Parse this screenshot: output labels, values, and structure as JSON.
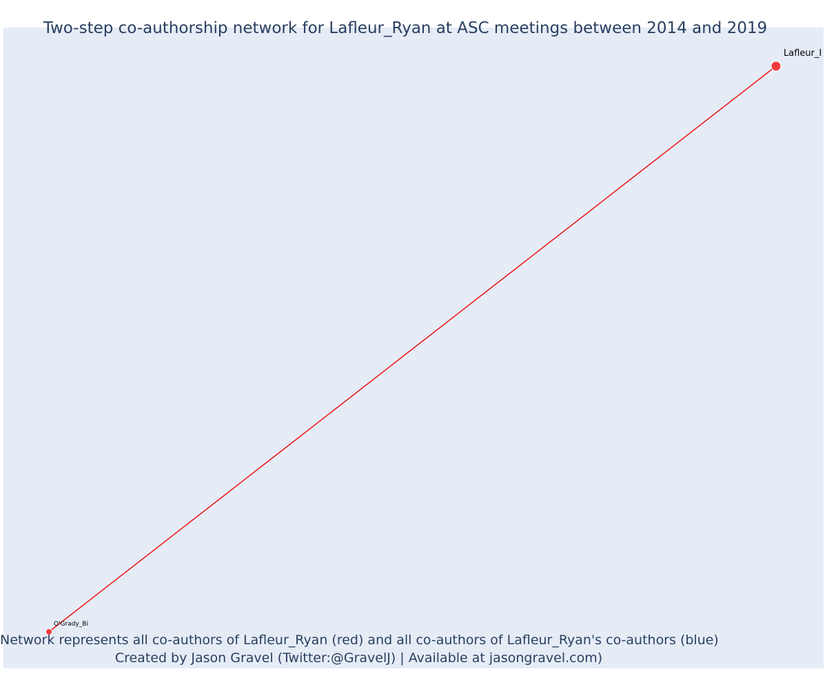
{
  "title": "Two-step co-authorship network for Lafleur_Ryan at ASC meetings between 2014 and 2019",
  "caption": {
    "line1": "Network represents all co-authors of Lafleur_Ryan (red) and all co-authors of Lafleur_Ryan's co-authors (blue)",
    "line2": "Created by Jason Gravel (Twitter:@GravelJ) | Available at jasongravel.com)"
  },
  "colors": {
    "background": "#e5ecf6",
    "edge": "#ee1111",
    "node": "#ef3b3b",
    "node_outline": "#ffffff",
    "text": "#2a3f5f"
  },
  "network": {
    "nodes": [
      {
        "id": "Lafleur_Ryan",
        "label": "Lafleur_I",
        "group": "red",
        "size": "large"
      },
      {
        "id": "OGrady_Bi",
        "label": "O'Grady_Bi",
        "group": "red",
        "size": "small"
      }
    ],
    "edges": [
      {
        "source": "Lafleur_Ryan",
        "target": "OGrady_Bi"
      }
    ]
  }
}
